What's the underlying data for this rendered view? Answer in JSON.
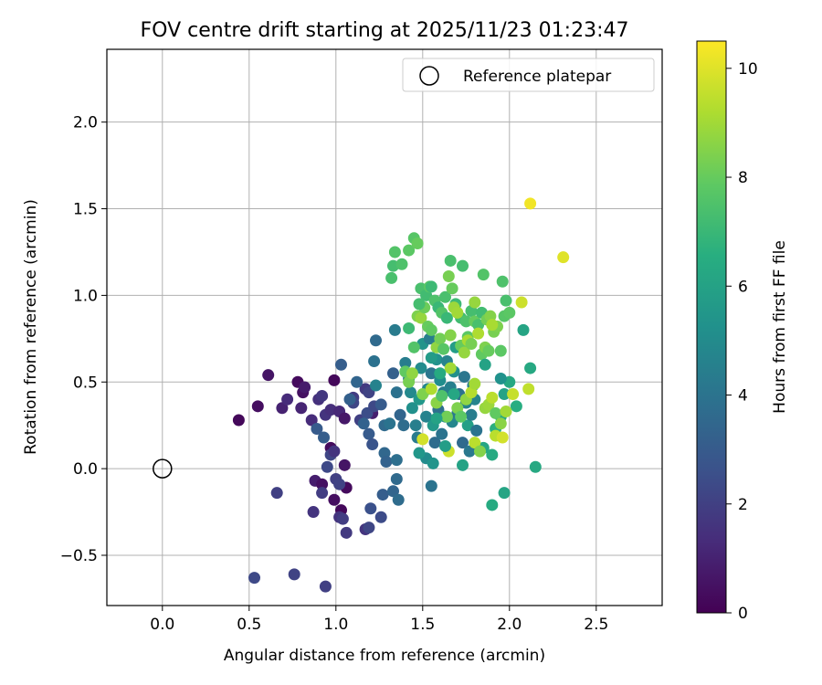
{
  "chart_data": {
    "type": "scatter",
    "title": "FOV centre drift starting at 2025/11/23 01:23:47",
    "xlabel": "Angular distance from reference (arcmin)",
    "ylabel": "Rotation from reference (arcmin)",
    "xlim": [
      -0.32,
      2.88
    ],
    "ylim": [
      -0.79,
      2.42
    ],
    "xticks": [
      0.0,
      0.5,
      1.0,
      1.5,
      2.0,
      2.5
    ],
    "yticks": [
      -0.5,
      0.0,
      0.5,
      1.0,
      1.5,
      2.0
    ],
    "xtick_labels": [
      "0.0",
      "0.5",
      "1.0",
      "1.5",
      "2.0",
      "2.5"
    ],
    "ytick_labels": [
      "−0.5",
      "0.0",
      "0.5",
      "1.0",
      "1.5",
      "2.0"
    ],
    "grid": true,
    "legend": {
      "position": "top-right",
      "entries": [
        "Reference platepar"
      ]
    },
    "reference_point": {
      "x": 0.0,
      "y": 0.0,
      "label": "Reference platepar"
    },
    "colorbar": {
      "label": "Hours from first FF file",
      "range": [
        0,
        10.5
      ],
      "colormap": "viridis",
      "ticks": [
        0,
        2,
        4,
        6,
        8,
        10
      ],
      "tick_labels": [
        "0",
        "2",
        "4",
        "6",
        "8",
        "10"
      ]
    },
    "points_columns": [
      "x",
      "y",
      "hours"
    ],
    "points": [
      [
        0.44,
        0.28,
        0.2
      ],
      [
        0.55,
        0.36,
        0.4
      ],
      [
        0.61,
        0.54,
        0.6
      ],
      [
        0.69,
        0.35,
        1.0
      ],
      [
        0.72,
        0.4,
        1.3
      ],
      [
        0.78,
        0.5,
        0.3
      ],
      [
        0.81,
        0.44,
        0.5
      ],
      [
        0.82,
        0.47,
        0.8
      ],
      [
        0.8,
        0.35,
        1.1
      ],
      [
        0.86,
        0.28,
        1.3
      ],
      [
        0.9,
        0.4,
        1.5
      ],
      [
        0.92,
        0.42,
        1.7
      ],
      [
        0.94,
        0.31,
        1.6
      ],
      [
        0.97,
        0.34,
        1.4
      ],
      [
        0.99,
        0.51,
        0.2
      ],
      [
        1.02,
        0.33,
        1.2
      ],
      [
        1.05,
        0.29,
        0.7
      ],
      [
        1.1,
        0.41,
        1.9
      ],
      [
        1.1,
        0.38,
        2.2
      ],
      [
        1.14,
        0.28,
        2.0
      ],
      [
        1.17,
        0.46,
        1.8
      ],
      [
        1.19,
        0.44,
        2.1
      ],
      [
        1.21,
        0.32,
        0.9
      ],
      [
        1.18,
        0.32,
        2.5
      ],
      [
        1.22,
        0.36,
        2.3
      ],
      [
        0.88,
        -0.07,
        0.9
      ],
      [
        0.92,
        -0.09,
        0.5
      ],
      [
        0.97,
        0.12,
        0.3
      ],
      [
        0.99,
        -0.18,
        0.4
      ],
      [
        1.03,
        -0.24,
        0.2
      ],
      [
        1.06,
        -0.11,
        0.3
      ],
      [
        1.05,
        0.02,
        0.6
      ],
      [
        1.0,
        -0.06,
        2.0
      ],
      [
        1.02,
        -0.09,
        2.1
      ],
      [
        0.95,
        0.01,
        2.3
      ],
      [
        0.97,
        0.08,
        2.2
      ],
      [
        0.99,
        0.1,
        1.6
      ],
      [
        0.92,
        -0.14,
        1.9
      ],
      [
        0.89,
        0.23,
        3.0
      ],
      [
        0.93,
        0.18,
        3.1
      ],
      [
        0.87,
        -0.25,
        1.6
      ],
      [
        0.66,
        -0.14,
        2.0
      ],
      [
        1.02,
        -0.28,
        1.6
      ],
      [
        1.04,
        -0.29,
        1.9
      ],
      [
        1.06,
        -0.37,
        1.8
      ],
      [
        1.17,
        -0.35,
        1.6
      ],
      [
        1.19,
        -0.34,
        2.2
      ],
      [
        1.2,
        -0.23,
        2.6
      ],
      [
        1.26,
        -0.28,
        2.4
      ],
      [
        1.27,
        -0.15,
        3.1
      ],
      [
        1.33,
        -0.13,
        3.4
      ],
      [
        1.35,
        -0.06,
        3.6
      ],
      [
        1.36,
        -0.18,
        3.7
      ],
      [
        1.28,
        0.09,
        3.5
      ],
      [
        1.29,
        0.04,
        3.3
      ],
      [
        1.35,
        0.05,
        3.8
      ],
      [
        0.53,
        -0.63,
        2.3
      ],
      [
        0.76,
        -0.61,
        2.1
      ],
      [
        0.94,
        -0.68,
        2.0
      ],
      [
        1.03,
        0.6,
        3.1
      ],
      [
        1.08,
        0.4,
        3.2
      ],
      [
        1.12,
        0.5,
        3.4
      ],
      [
        1.16,
        0.26,
        3.3
      ],
      [
        1.19,
        0.2,
        3.0
      ],
      [
        1.21,
        0.14,
        2.7
      ],
      [
        1.23,
        0.74,
        3.6
      ],
      [
        1.22,
        0.62,
        3.9
      ],
      [
        1.23,
        0.48,
        4.6
      ],
      [
        1.26,
        0.37,
        3.0
      ],
      [
        1.28,
        0.25,
        3.6
      ],
      [
        1.31,
        0.26,
        4.0
      ],
      [
        1.33,
        0.55,
        3.2
      ],
      [
        1.34,
        0.8,
        4.3
      ],
      [
        1.35,
        0.44,
        3.9
      ],
      [
        1.37,
        0.31,
        3.4
      ],
      [
        1.39,
        0.25,
        3.7
      ],
      [
        1.4,
        0.61,
        4.4
      ],
      [
        1.42,
        0.52,
        4.2
      ],
      [
        1.43,
        0.44,
        4.9
      ],
      [
        1.44,
        0.35,
        5.2
      ],
      [
        1.46,
        0.25,
        4.5
      ],
      [
        1.47,
        0.18,
        4.3
      ],
      [
        1.48,
        0.4,
        5.5
      ],
      [
        1.49,
        0.58,
        5.0
      ],
      [
        1.5,
        0.72,
        5.4
      ],
      [
        1.52,
        0.3,
        4.6
      ],
      [
        1.53,
        0.46,
        4.8
      ],
      [
        1.54,
        0.75,
        4.4
      ],
      [
        1.55,
        0.55,
        4.1
      ],
      [
        1.56,
        0.25,
        5.6
      ],
      [
        1.57,
        0.15,
        3.7
      ],
      [
        1.58,
        0.63,
        5.3
      ],
      [
        1.59,
        0.34,
        3.8
      ],
      [
        1.6,
        0.51,
        5.1
      ],
      [
        1.61,
        0.2,
        4.0
      ],
      [
        1.62,
        0.44,
        4.3
      ],
      [
        1.63,
        0.3,
        5.0
      ],
      [
        1.64,
        0.62,
        4.7
      ],
      [
        1.66,
        0.47,
        4.5
      ],
      [
        1.67,
        0.27,
        4.8
      ],
      [
        1.68,
        0.56,
        5.2
      ],
      [
        1.69,
        0.7,
        5.8
      ],
      [
        1.7,
        0.32,
        4.2
      ],
      [
        1.71,
        0.43,
        3.9
      ],
      [
        1.73,
        0.15,
        3.6
      ],
      [
        1.74,
        0.53,
        4.1
      ],
      [
        1.75,
        0.38,
        4.6
      ],
      [
        1.76,
        0.25,
        5.9
      ],
      [
        1.77,
        0.1,
        4.2
      ],
      [
        1.78,
        0.31,
        4.4
      ],
      [
        1.79,
        0.48,
        4.5
      ],
      [
        1.8,
        0.4,
        4.7
      ],
      [
        1.81,
        0.22,
        4.0
      ],
      [
        1.55,
        -0.1,
        4.0
      ],
      [
        1.52,
        0.06,
        5.0
      ],
      [
        1.48,
        0.09,
        5.5
      ],
      [
        1.56,
        0.03,
        5.4
      ],
      [
        1.73,
        0.02,
        6.0
      ],
      [
        1.85,
        0.12,
        6.2
      ],
      [
        1.9,
        0.08,
        6.4
      ],
      [
        1.92,
        0.23,
        6.6
      ],
      [
        1.95,
        0.3,
        6.2
      ],
      [
        1.97,
        0.43,
        6.0
      ],
      [
        2.0,
        0.5,
        6.3
      ],
      [
        2.04,
        0.36,
        6.5
      ],
      [
        2.08,
        0.8,
        6.1
      ],
      [
        2.12,
        0.58,
        6.3
      ],
      [
        2.15,
        0.01,
        6.3
      ],
      [
        1.9,
        -0.21,
        6.4
      ],
      [
        1.97,
        -0.14,
        6.1
      ],
      [
        1.32,
        1.1,
        7.4
      ],
      [
        1.33,
        1.17,
        7.3
      ],
      [
        1.34,
        1.25,
        7.6
      ],
      [
        1.38,
        1.18,
        7.5
      ],
      [
        1.42,
        1.26,
        7.8
      ],
      [
        1.45,
        1.33,
        7.7
      ],
      [
        1.47,
        1.3,
        8.0
      ],
      [
        1.49,
        1.04,
        7.4
      ],
      [
        1.52,
        1.0,
        7.2
      ],
      [
        1.54,
        1.05,
        7.8
      ],
      [
        1.55,
        1.05,
        7.1
      ],
      [
        1.57,
        0.97,
        7.5
      ],
      [
        1.59,
        0.93,
        7.0
      ],
      [
        1.61,
        0.9,
        7.6
      ],
      [
        1.63,
        0.99,
        7.4
      ],
      [
        1.65,
        1.11,
        8.3
      ],
      [
        1.66,
        1.2,
        7.4
      ],
      [
        1.67,
        1.04,
        8.0
      ],
      [
        1.69,
        0.95,
        7.1
      ],
      [
        1.72,
        0.87,
        7.2
      ],
      [
        1.73,
        1.17,
        7.3
      ],
      [
        1.75,
        0.85,
        7.5
      ],
      [
        1.76,
        0.76,
        7.8
      ],
      [
        1.78,
        0.91,
        7.3
      ],
      [
        1.8,
        0.85,
        8.0
      ],
      [
        1.82,
        0.83,
        7.4
      ],
      [
        1.84,
        0.9,
        7.2
      ],
      [
        1.85,
        1.12,
        7.6
      ],
      [
        1.87,
        0.86,
        8.2
      ],
      [
        1.89,
        0.88,
        8.5
      ],
      [
        1.91,
        0.79,
        8.3
      ],
      [
        1.93,
        0.82,
        8.4
      ],
      [
        1.96,
        1.08,
        7.5
      ],
      [
        1.98,
        0.97,
        7.4
      ],
      [
        1.97,
        0.88,
        7.7
      ],
      [
        1.42,
        0.81,
        7.1
      ],
      [
        1.45,
        0.7,
        7.6
      ],
      [
        1.47,
        0.88,
        8.4
      ],
      [
        1.49,
        0.87,
        8.8
      ],
      [
        1.51,
        0.93,
        8.1
      ],
      [
        1.53,
        0.82,
        8.0
      ],
      [
        1.55,
        0.8,
        7.9
      ],
      [
        1.58,
        0.7,
        8.7
      ],
      [
        1.6,
        0.75,
        8.2
      ],
      [
        1.62,
        0.69,
        7.7
      ],
      [
        1.64,
        0.87,
        7.0
      ],
      [
        1.66,
        0.77,
        8.5
      ],
      [
        1.68,
        0.93,
        8.9
      ],
      [
        1.7,
        0.9,
        9.0
      ],
      [
        1.72,
        0.71,
        8.0
      ],
      [
        1.74,
        0.67,
        8.8
      ],
      [
        1.76,
        0.74,
        9.1
      ],
      [
        1.78,
        0.72,
        8.3
      ],
      [
        1.8,
        0.96,
        8.8
      ],
      [
        1.82,
        0.78,
        9.2
      ],
      [
        1.84,
        0.66,
        7.9
      ],
      [
        1.86,
        0.7,
        8.4
      ],
      [
        1.88,
        0.68,
        8.0
      ],
      [
        1.9,
        0.83,
        9.1
      ],
      [
        1.95,
        0.68,
        7.8
      ],
      [
        2.0,
        0.9,
        7.8
      ],
      [
        1.4,
        0.56,
        7.9
      ],
      [
        1.42,
        0.5,
        8.3
      ],
      [
        1.44,
        0.55,
        8.7
      ],
      [
        1.5,
        0.43,
        8.4
      ],
      [
        1.55,
        0.46,
        9.2
      ],
      [
        1.58,
        0.38,
        8.6
      ],
      [
        1.61,
        0.42,
        7.5
      ],
      [
        1.64,
        0.3,
        8.2
      ],
      [
        1.66,
        0.58,
        9.0
      ],
      [
        1.7,
        0.35,
        8.4
      ],
      [
        1.72,
        0.3,
        7.8
      ],
      [
        1.75,
        0.4,
        8.7
      ],
      [
        1.78,
        0.44,
        9.3
      ],
      [
        1.8,
        0.49,
        9.0
      ],
      [
        1.86,
        0.35,
        8.8
      ],
      [
        1.88,
        0.37,
        8.9
      ],
      [
        1.9,
        0.41,
        9.4
      ],
      [
        1.92,
        0.32,
        7.9
      ],
      [
        1.95,
        0.26,
        8.6
      ],
      [
        1.98,
        0.33,
        9.0
      ],
      [
        2.02,
        0.43,
        9.6
      ],
      [
        2.07,
        0.96,
        9.7
      ],
      [
        2.11,
        0.46,
        9.5
      ],
      [
        1.65,
        0.1,
        9.7
      ],
      [
        1.8,
        0.15,
        9.4
      ],
      [
        1.83,
        0.1,
        8.5
      ],
      [
        1.92,
        0.19,
        9.4
      ],
      [
        1.96,
        0.18,
        9.8
      ],
      [
        1.5,
        0.17,
        9.8
      ],
      [
        2.12,
        1.53,
        10.3
      ],
      [
        2.31,
        1.22,
        10.0
      ],
      [
        1.48,
        0.95,
        7.3
      ],
      [
        1.86,
        0.6,
        6.0
      ],
      [
        1.95,
        0.52,
        5.3
      ],
      [
        1.55,
        0.64,
        5.7
      ],
      [
        1.6,
        0.55,
        6.4
      ],
      [
        1.68,
        0.43,
        6.2
      ],
      [
        1.58,
        0.29,
        6.0
      ],
      [
        1.63,
        0.13,
        5.8
      ]
    ]
  }
}
